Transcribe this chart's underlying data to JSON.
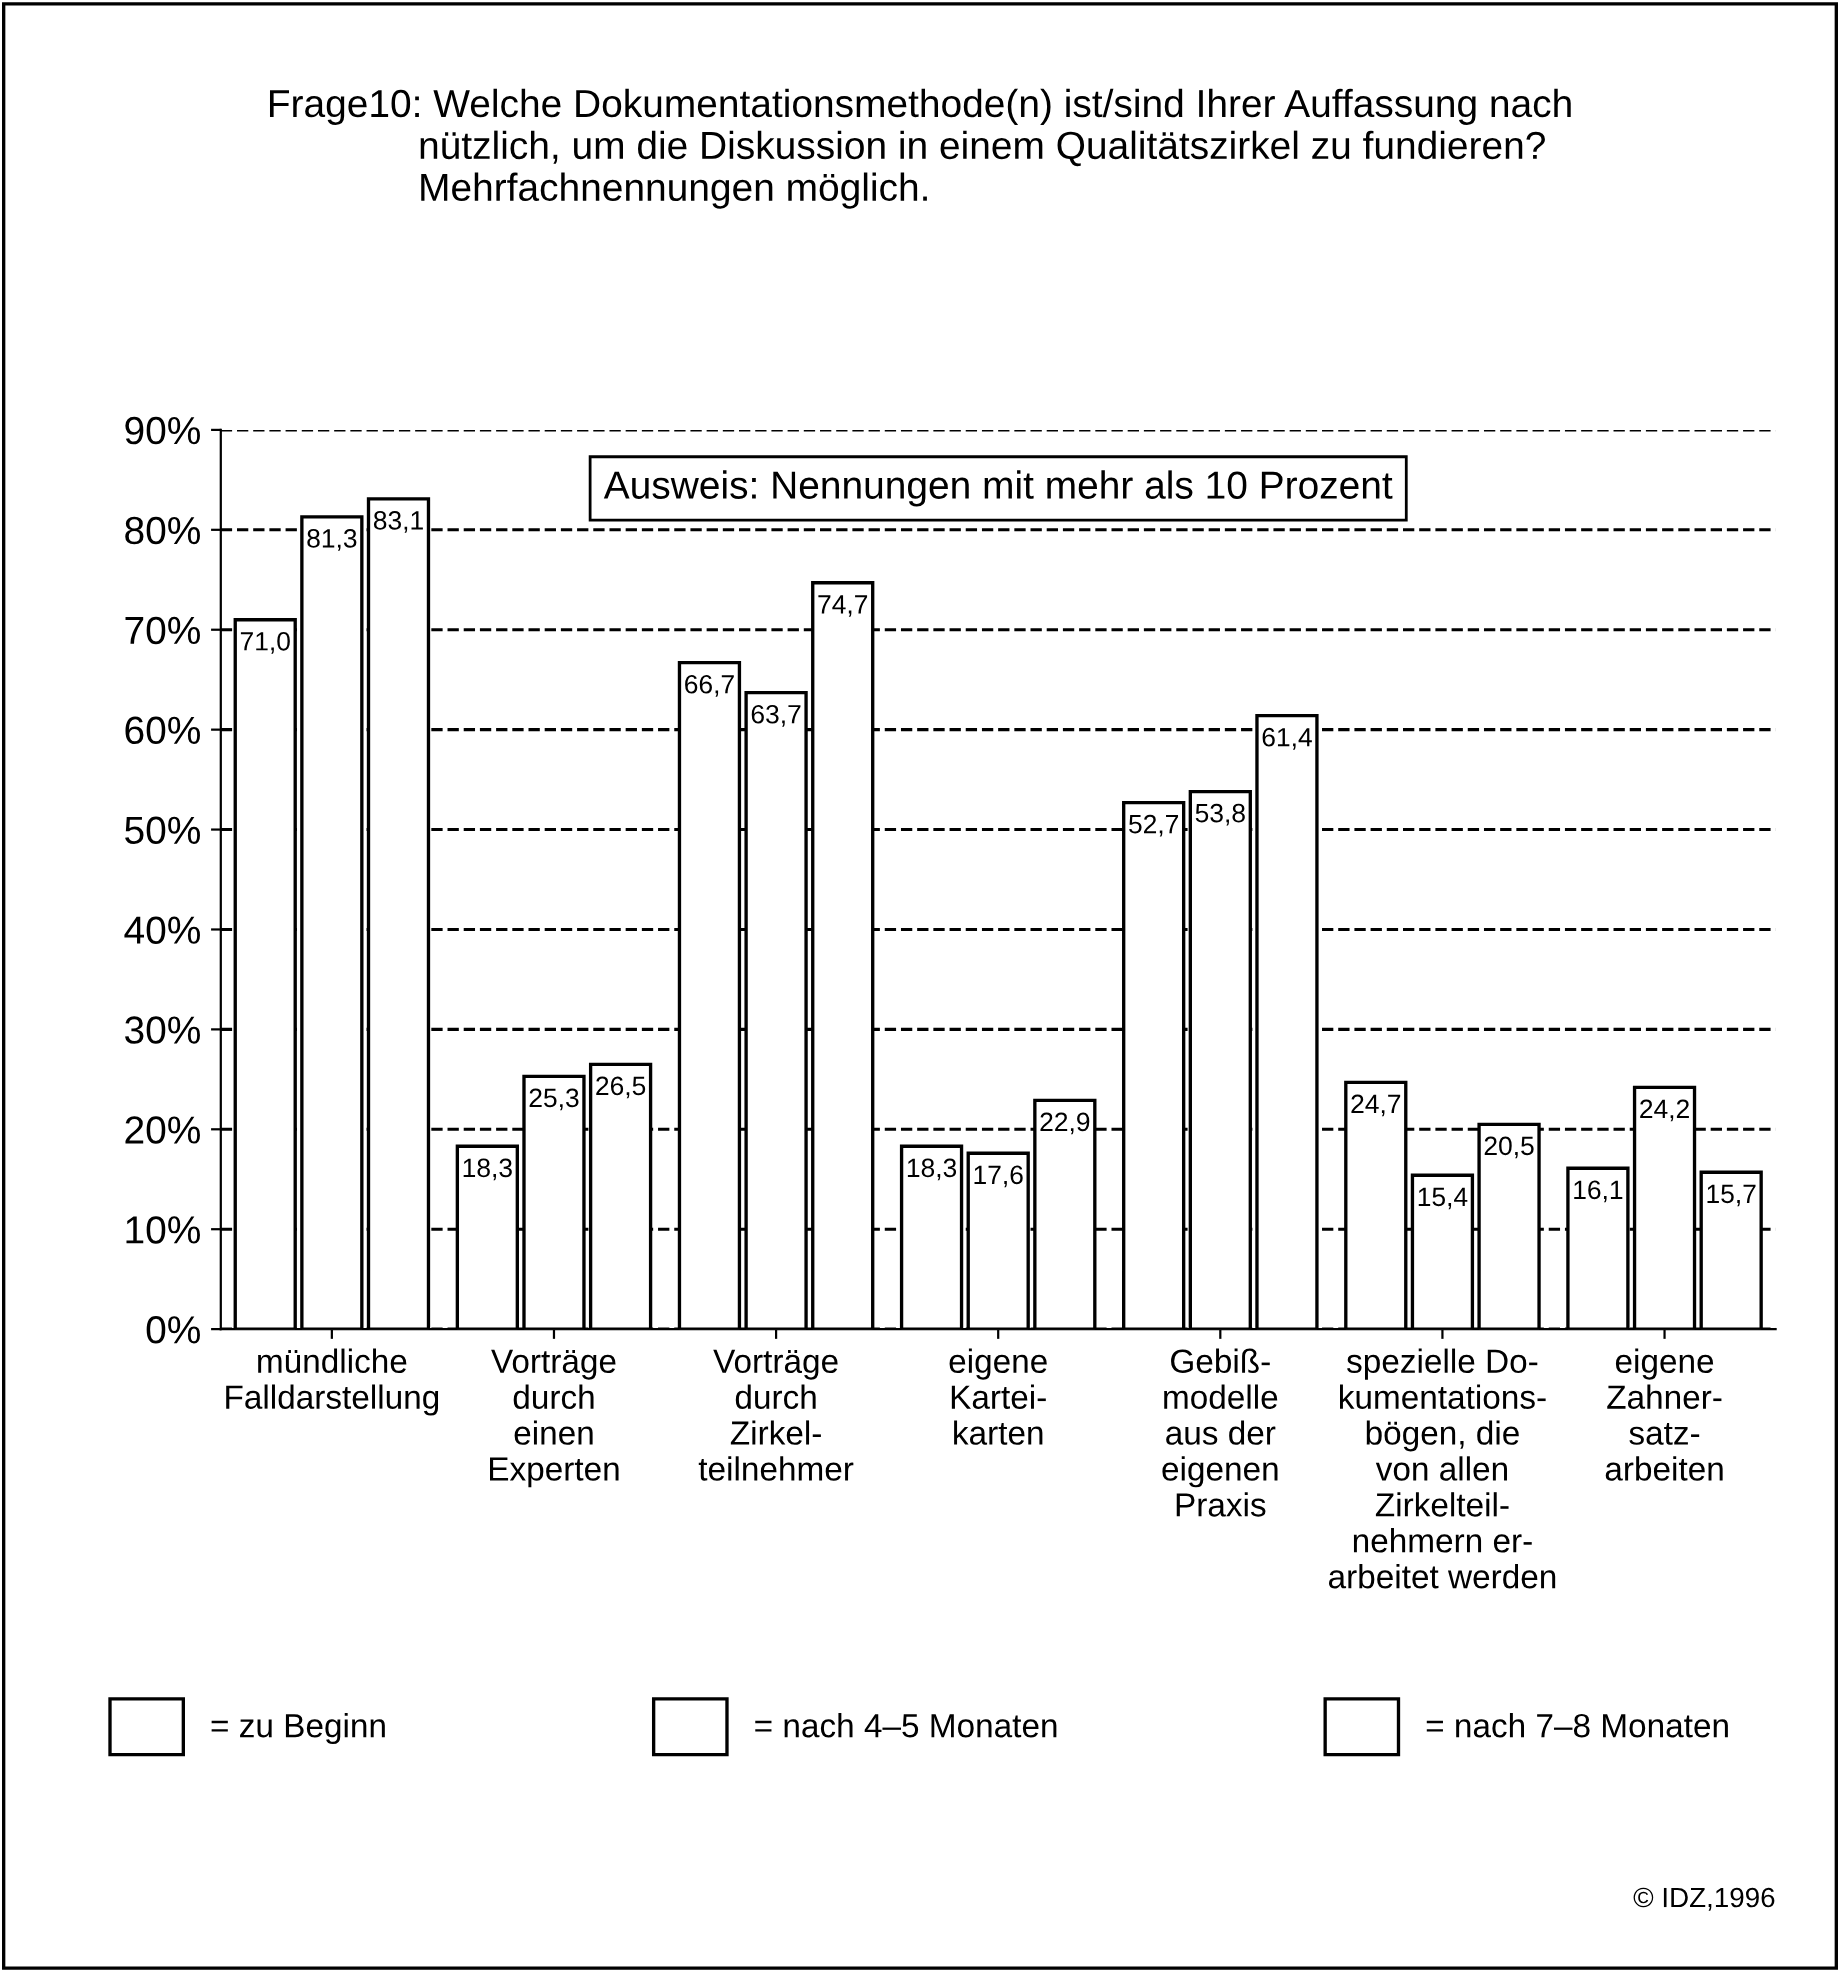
{
  "chart_data": {
    "type": "bar",
    "title": "Frage10: Welche Dokumentationsmethode(n) ist/sind Ihrer Auffassung nach\n              nützlich, um die Diskussion in einem Qualitätszirkel zu fundieren?\n              Mehrfachnennungen möglich.",
    "categories": [
      "mündliche\nFalldarstellung",
      "Vorträge\ndurch\neinen\nExperten",
      "Vorträge\ndurch\nZirkel-\nteilnehmer",
      "eigene\nKartei-\nkarten",
      "Gebiß-\nmodelle\naus der\neigenen\nPraxis",
      "spezielle Do-\nkumentations-\nbögen, die\nvon allen\nZirkelteil-\nnehmern er-\narbeitet werden",
      "eigene\nZahner-\nsatz-\narbeiten"
    ],
    "series": [
      {
        "name": "= zu Beginn",
        "color": "#ffffff",
        "values": [
          71.0,
          18.3,
          66.7,
          18.3,
          52.7,
          24.7,
          16.1
        ],
        "value_labels": [
          "71,0",
          "18,3",
          "66,7",
          "18,3",
          "52,7",
          "24,7",
          "16,1"
        ]
      },
      {
        "name": "= nach 4–5 Monaten",
        "color": "#ffffff",
        "values": [
          81.3,
          25.3,
          63.7,
          17.6,
          53.8,
          15.4,
          24.2
        ],
        "value_labels": [
          "81,3",
          "25,3",
          "63,7",
          "17,6",
          "53,8",
          "15,4",
          "24,2"
        ]
      },
      {
        "name": "= nach 7–8 Monaten",
        "color": "#ffffff",
        "values": [
          83.1,
          26.5,
          74.7,
          22.9,
          61.4,
          20.5,
          15.7
        ],
        "value_labels": [
          "83,1",
          "26,5",
          "74,7",
          "22,9",
          "61,4",
          "20,5",
          "15,7"
        ]
      }
    ],
    "ylim": [
      0,
      90
    ],
    "yticks": [
      {
        "value": 0,
        "label": "0%"
      },
      {
        "value": 10,
        "label": "10%"
      },
      {
        "value": 20,
        "label": "20%"
      },
      {
        "value": 30,
        "label": "30%"
      },
      {
        "value": 40,
        "label": "40%"
      },
      {
        "value": 50,
        "label": "50%"
      },
      {
        "value": 60,
        "label": "60%"
      },
      {
        "value": 70,
        "label": "70%"
      },
      {
        "value": 80,
        "label": "80%"
      },
      {
        "value": 90,
        "label": "90%"
      }
    ],
    "grid": "y",
    "line_style": "dashed",
    "legend": "bottom",
    "annotations": [
      "Ausweis: Nennungen mit mehr als 10 Prozent",
      "© IDZ,1996"
    ]
  }
}
